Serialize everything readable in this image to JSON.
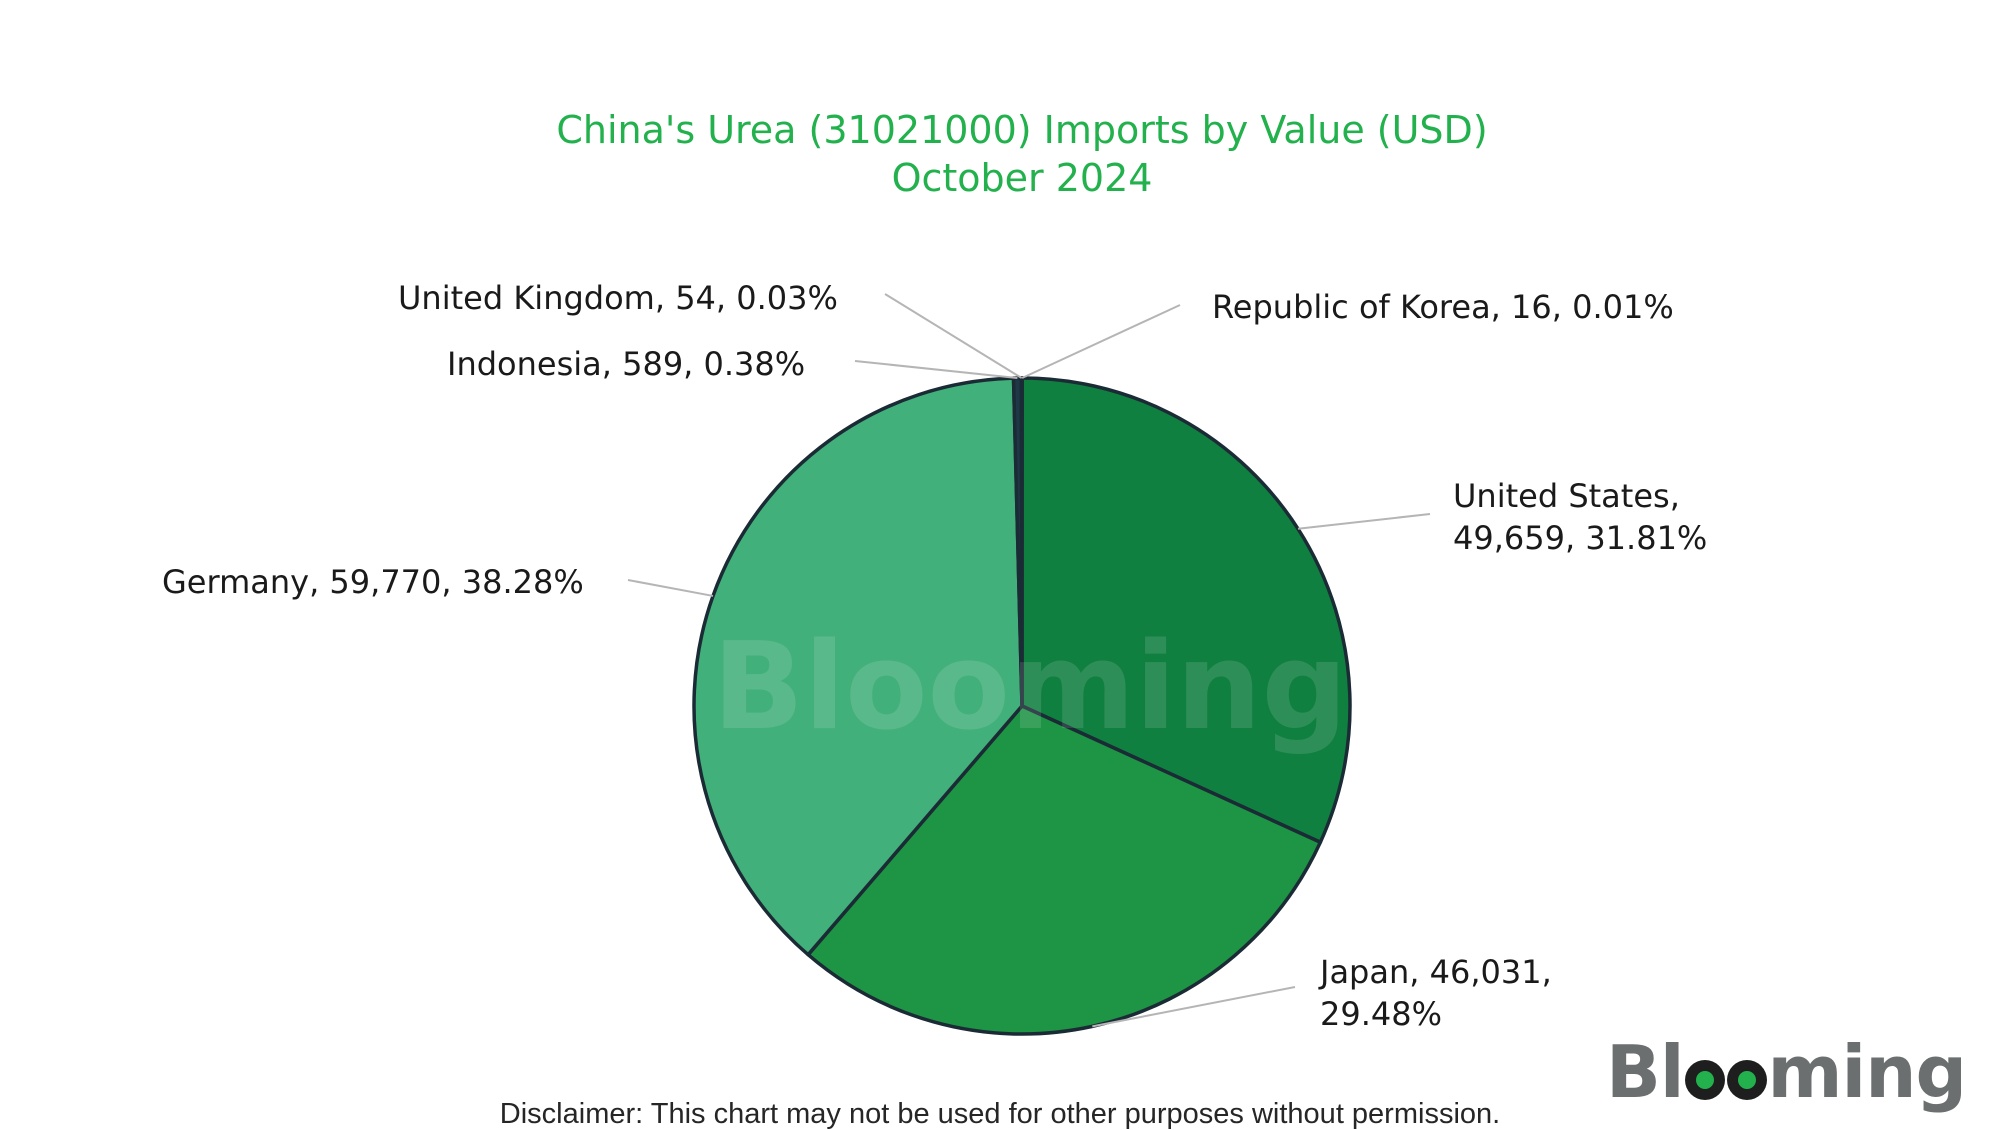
{
  "chart_data": {
    "type": "pie",
    "title": "China's Urea (31021000) Imports by Value (USD)",
    "subtitle": "October 2024",
    "slices": [
      {
        "label": "Republic of Korea",
        "value": 16,
        "percent": "0.01%",
        "value_text": "16",
        "color": "#3e6b50"
      },
      {
        "label": "United States",
        "value": 49659,
        "percent": "31.81%",
        "value_text": "49,659",
        "color": "#108040"
      },
      {
        "label": "Japan",
        "value": 46031,
        "percent": "29.48%",
        "value_text": "46,031",
        "color": "#1e9445"
      },
      {
        "label": "Germany",
        "value": 59770,
        "percent": "38.28%",
        "value_text": "59,770",
        "color": "#42b07a"
      },
      {
        "label": "Indonesia",
        "value": 589,
        "percent": "0.38%",
        "value_text": "589",
        "color": "#1f3848"
      },
      {
        "label": "United Kingdom",
        "value": 54,
        "percent": "0.03%",
        "value_text": "54",
        "color": "#2b4a5a"
      }
    ],
    "labels": [
      {
        "lines": [
          "Republic of Korea, 16, 0.01%"
        ]
      },
      {
        "lines": [
          "United States,",
          "49,659, 31.81%"
        ]
      },
      {
        "lines": [
          "Japan, 46,031,",
          "29.48%"
        ]
      },
      {
        "lines": [
          "Germany, 59,770, 38.28%"
        ]
      },
      {
        "lines": [
          "Indonesia, 589, 0.38%"
        ]
      },
      {
        "lines": [
          "United Kingdom, 54, 0.03%"
        ]
      }
    ],
    "legend": "none",
    "start_angle": "12 o'clock, clockwise"
  },
  "watermark": "Blooming",
  "brand": {
    "pre": "Bl",
    "post": "ming"
  },
  "disclaimer": "Disclaimer: This chart may not be used for other purposes without permission.",
  "colors": {
    "title": "#22b14c",
    "outline": "#1b2b35",
    "leader": "#b5b5b5"
  }
}
